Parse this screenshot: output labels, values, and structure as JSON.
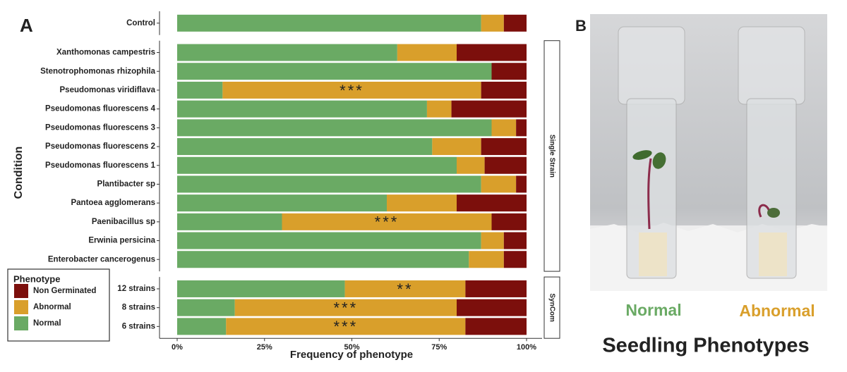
{
  "panel_labels": [
    "A",
    "B"
  ],
  "chart_data": {
    "type": "bar",
    "orientation": "horizontal",
    "stacked": true,
    "xlabel": "Frequency of phenotype",
    "ylabel": "Condition",
    "xlim": [
      0,
      100
    ],
    "xticks": [
      {
        "value": 0,
        "label": "0%"
      },
      {
        "value": 25,
        "label": "25%"
      },
      {
        "value": 50,
        "label": "50%"
      },
      {
        "value": 75,
        "label": "75%"
      },
      {
        "value": 100,
        "label": "100%"
      }
    ],
    "legend": {
      "title": "Phenotype",
      "position": "bottom-left"
    },
    "series": [
      {
        "name": "Normal",
        "color": "#6aaa64"
      },
      {
        "name": "Abnormal",
        "color": "#d99f2b"
      },
      {
        "name": "Non Germinated",
        "color": "#7c0f0c"
      }
    ],
    "facets": [
      {
        "categories": [
          "Control"
        ],
        "values": [
          [
            87,
            6.5,
            6.5
          ]
        ]
      },
      {
        "label": "Single Strain",
        "categories": [
          "Xanthomonas campestris",
          "Stenotrophomonas rhizophila",
          "Pseudomonas viridiflava",
          "Pseudomonas fluorescens 4",
          "Pseudomonas fluorescens 3",
          "Pseudomonas fluorescens 2",
          "Pseudomonas fluorescens 1",
          "Plantibacter sp",
          "Pantoea agglomerans",
          "Paenibacillus sp",
          "Erwinia persicina",
          "Enterobacter cancerogenus"
        ],
        "values": [
          [
            63,
            17,
            20
          ],
          [
            90,
            0,
            10
          ],
          [
            13,
            74,
            13
          ],
          [
            71.5,
            7,
            21.5
          ],
          [
            90,
            7,
            3
          ],
          [
            73,
            14,
            13
          ],
          [
            80,
            8,
            12
          ],
          [
            87,
            10,
            3
          ],
          [
            60,
            20,
            20
          ],
          [
            30,
            60,
            10
          ],
          [
            87,
            6.5,
            6.5
          ],
          [
            83.5,
            10,
            6.5
          ]
        ],
        "annotations": [
          {
            "category": 2,
            "text": "***"
          },
          {
            "category": 9,
            "text": "***"
          }
        ]
      },
      {
        "label": "SynCom",
        "categories": [
          "12 strains",
          "8 strains",
          "6 strains"
        ],
        "values": [
          [
            48,
            34.5,
            17.5
          ],
          [
            16.5,
            63.5,
            20
          ],
          [
            14,
            68.5,
            17.5
          ]
        ],
        "annotations": [
          {
            "category": 0,
            "text": "**"
          },
          {
            "category": 1,
            "text": "***"
          },
          {
            "category": 2,
            "text": "***"
          }
        ]
      }
    ]
  },
  "photo": {
    "captions": [
      "Normal",
      "Abnormal"
    ],
    "title": "Seedling Phenotypes"
  }
}
